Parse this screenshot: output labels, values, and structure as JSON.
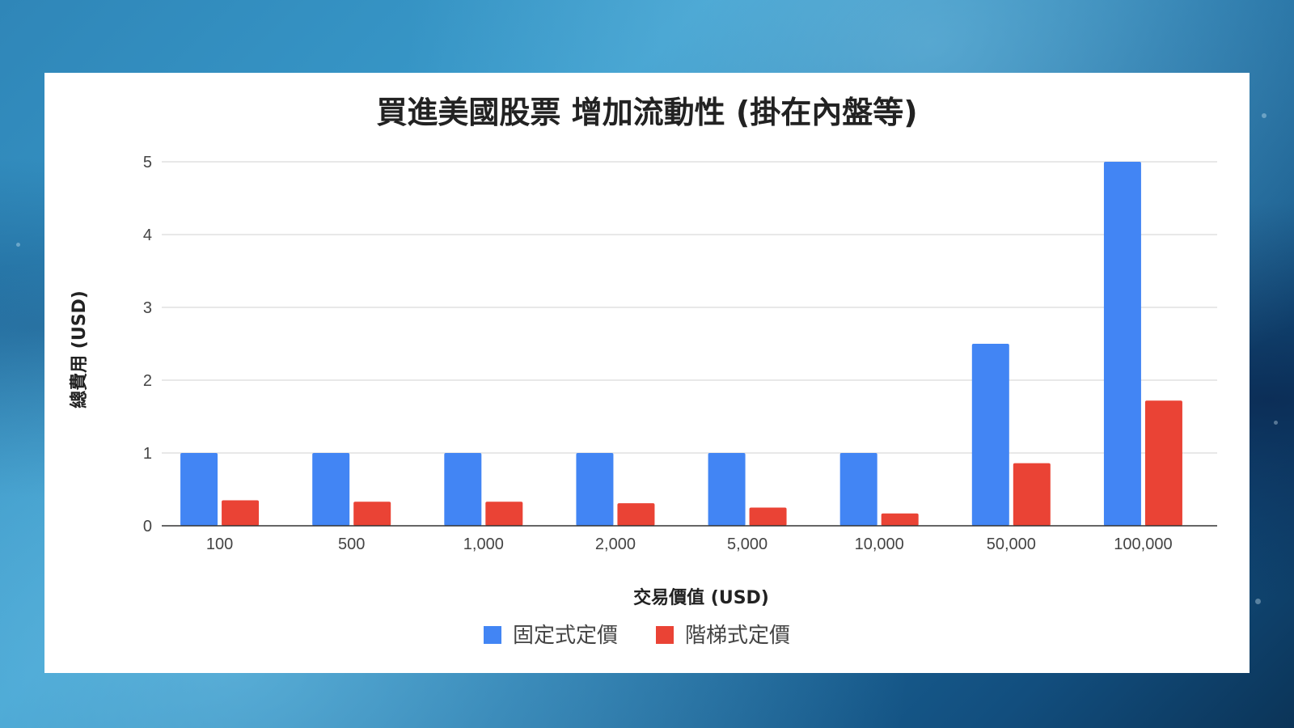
{
  "chart_data": {
    "type": "bar",
    "title": "買進美國股票 增加流動性 (掛在內盤等)",
    "xlabel": "交易價值 (USD)",
    "ylabel": "總費用 (USD)",
    "categories": [
      "100",
      "500",
      "1,000",
      "2,000",
      "5,000",
      "10,000",
      "50,000",
      "100,000"
    ],
    "ylim": [
      0,
      5
    ],
    "yticks": [
      "0",
      "1",
      "2",
      "3",
      "4",
      "5"
    ],
    "grid": true,
    "legend_position": "bottom",
    "series": [
      {
        "name": "固定式定價",
        "color": "#4285f4",
        "values": [
          1,
          1,
          1,
          1,
          1,
          1,
          2.5,
          5
        ]
      },
      {
        "name": "階梯式定價",
        "color": "#ea4335",
        "values": [
          0.35,
          0.33,
          0.33,
          0.31,
          0.25,
          0.17,
          0.86,
          1.72
        ]
      }
    ]
  }
}
